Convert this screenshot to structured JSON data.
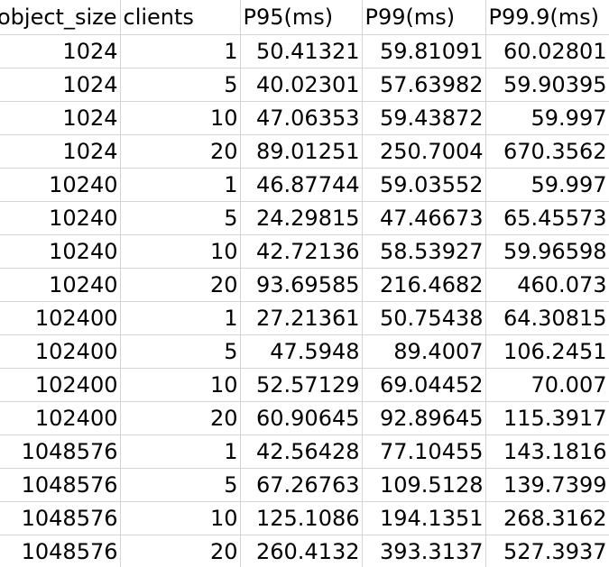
{
  "sheet": {
    "headers": [
      "object_size",
      "clients",
      "P95(ms)",
      "P99(ms)",
      "P99.9(ms)"
    ],
    "rows": [
      [
        "1024",
        "1",
        "50.41321",
        "59.81091",
        "60.02801"
      ],
      [
        "1024",
        "5",
        "40.02301",
        "57.63982",
        "59.90395"
      ],
      [
        "1024",
        "10",
        "47.06353",
        "59.43872",
        "59.997"
      ],
      [
        "1024",
        "20",
        "89.01251",
        "250.7004",
        "670.3562"
      ],
      [
        "10240",
        "1",
        "46.87744",
        "59.03552",
        "59.997"
      ],
      [
        "10240",
        "5",
        "24.29815",
        "47.46673",
        "65.45573"
      ],
      [
        "10240",
        "10",
        "42.72136",
        "58.53927",
        "59.96598"
      ],
      [
        "10240",
        "20",
        "93.69585",
        "216.4682",
        "460.073"
      ],
      [
        "102400",
        "1",
        "27.21361",
        "50.75438",
        "64.30815"
      ],
      [
        "102400",
        "5",
        "47.5948",
        "89.4007",
        "106.2451"
      ],
      [
        "102400",
        "10",
        "52.57129",
        "69.04452",
        "70.007"
      ],
      [
        "102400",
        "20",
        "60.90645",
        "92.89645",
        "115.3917"
      ],
      [
        "1048576",
        "1",
        "42.56428",
        "77.10455",
        "143.1816"
      ],
      [
        "1048576",
        "5",
        "67.26763",
        "109.5128",
        "139.7399"
      ],
      [
        "1048576",
        "10",
        "125.1086",
        "194.1351",
        "268.3162"
      ],
      [
        "1048576",
        "20",
        "260.4132",
        "393.3137",
        "527.3937"
      ]
    ]
  }
}
